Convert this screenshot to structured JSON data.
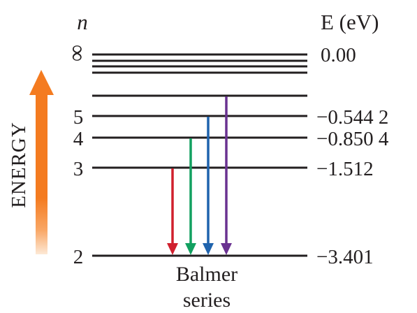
{
  "header": {
    "n_label": "n",
    "e_label": "E (eV)"
  },
  "energy_label": "ENERGY",
  "series_caption": {
    "line1": "Balmer",
    "line2": "series"
  },
  "levels": [
    {
      "n": "∞",
      "energy": "0.00"
    },
    {
      "n": "5",
      "energy": "−0.544 2"
    },
    {
      "n": "4",
      "energy": "−0.850 4"
    },
    {
      "n": "3",
      "energy": "−1.512"
    },
    {
      "n": "2",
      "energy": "−3.401"
    }
  ],
  "transitions": [
    {
      "from": "3",
      "to": "2",
      "color": "#d0202e"
    },
    {
      "from": "4",
      "to": "2",
      "color": "#12a060"
    },
    {
      "from": "5",
      "to": "2",
      "color": "#1f63ad"
    },
    {
      "from": "6",
      "to": "2",
      "color": "#6a3291"
    }
  ],
  "colors": {
    "line": "#231f20",
    "energy_arrow_top": "#f47b20",
    "energy_arrow_bottom": "#fde9d6"
  }
}
